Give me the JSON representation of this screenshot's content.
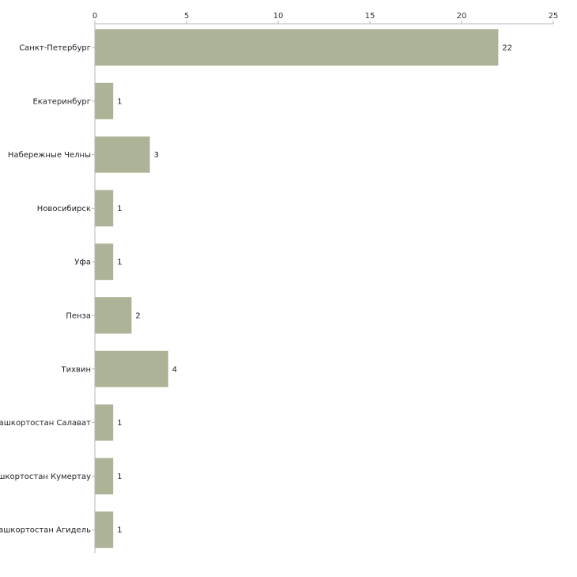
{
  "chart_data": {
    "type": "bar",
    "orientation": "horizontal",
    "title": "",
    "xlabel": "",
    "ylabel": "",
    "xlim": [
      0,
      25
    ],
    "ticks": [
      0,
      5,
      10,
      15,
      20,
      25
    ],
    "tick_labels": [
      "0",
      "5",
      "10",
      "15",
      "20",
      "25"
    ],
    "categories": [
      "Санкт-Петербург",
      "Екатеринбург",
      "Набережные Челны",
      "Новосибирск",
      "Уфа",
      "Пенза",
      "Тихвин",
      "ашкортостан Салават",
      "ашкортостан Кумертау",
      "ашкортостан Агидель"
    ],
    "values": [
      22,
      1,
      3,
      1,
      1,
      2,
      4,
      1,
      1,
      1
    ],
    "value_labels": [
      "22",
      "1",
      "3",
      "1",
      "1",
      "2",
      "4",
      "1",
      "1",
      "1"
    ],
    "bar_color": "#adb396",
    "axis_color": "#b5b5b5",
    "grid": false,
    "legend": "none"
  }
}
